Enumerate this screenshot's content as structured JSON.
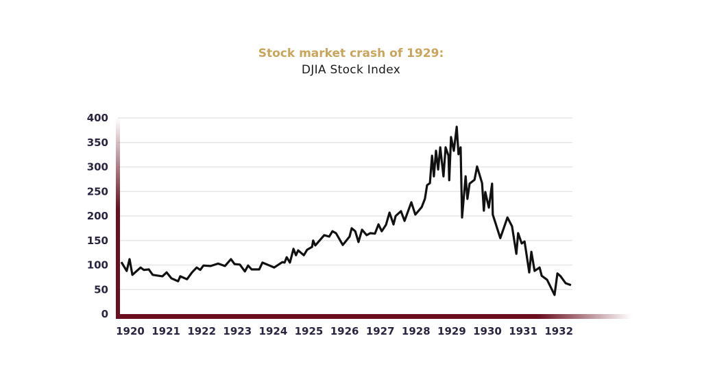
{
  "chart_data": {
    "type": "line",
    "title": "Stock market crash of 1929:",
    "subtitle": "DJIA Stock Index",
    "xlabel": "",
    "ylabel": "",
    "ylim": [
      0,
      400
    ],
    "xlim": [
      1919.65,
      1932.45
    ],
    "yticks": [
      0,
      50,
      100,
      150,
      200,
      250,
      300,
      350,
      400
    ],
    "xticks": [
      1920,
      1921,
      1922,
      1923,
      1924,
      1925,
      1926,
      1927,
      1928,
      1929,
      1930,
      1931,
      1932
    ],
    "grid": true,
    "colors": {
      "title": "#c9a45c",
      "line": "#111111",
      "axis": "#6b0f1f",
      "grid": "#e6e6e6",
      "ticks": "#2b2440"
    },
    "series": [
      {
        "name": "DJIA",
        "x": [
          1919.75,
          1919.9,
          1919.98,
          1920.06,
          1920.29,
          1920.38,
          1920.52,
          1920.63,
          1920.9,
          1921.02,
          1921.15,
          1921.34,
          1921.4,
          1921.59,
          1921.73,
          1921.86,
          1921.96,
          1922.05,
          1922.25,
          1922.46,
          1922.65,
          1922.82,
          1922.92,
          1923.07,
          1923.21,
          1923.3,
          1923.4,
          1923.61,
          1923.7,
          1923.9,
          1924.03,
          1924.26,
          1924.32,
          1924.38,
          1924.47,
          1924.57,
          1924.64,
          1924.7,
          1924.86,
          1924.95,
          1925.09,
          1925.12,
          1925.18,
          1925.43,
          1925.57,
          1925.66,
          1925.76,
          1925.95,
          1926.14,
          1926.2,
          1926.3,
          1926.39,
          1926.49,
          1926.62,
          1926.72,
          1926.85,
          1926.95,
          1927.04,
          1927.16,
          1927.26,
          1927.37,
          1927.43,
          1927.58,
          1927.68,
          1927.87,
          1927.98,
          1928.16,
          1928.25,
          1928.31,
          1928.39,
          1928.45,
          1928.5,
          1928.56,
          1928.62,
          1928.68,
          1928.77,
          1928.83,
          1928.91,
          1928.93,
          1928.98,
          1929.06,
          1929.14,
          1929.19,
          1929.25,
          1929.29,
          1929.39,
          1929.44,
          1929.5,
          1929.64,
          1929.71,
          1929.85,
          1929.9,
          1929.94,
          1930.04,
          1930.13,
          1930.15,
          1930.36,
          1930.56,
          1930.69,
          1930.81,
          1930.86,
          1930.96,
          1931.04,
          1931.17,
          1931.23,
          1931.32,
          1931.46,
          1931.52,
          1931.67,
          1931.88,
          1931.96,
          1932.05,
          1932.19,
          1932.34
        ],
        "values": [
          106,
          88,
          112,
          80,
          95,
          90,
          91,
          80,
          77,
          85,
          73,
          67,
          77,
          71,
          85,
          95,
          90,
          99,
          98,
          103,
          98,
          112,
          102,
          101,
          87,
          99,
          91,
          91,
          105,
          99,
          95,
          106,
          105,
          116,
          105,
          133,
          120,
          130,
          120,
          131,
          137,
          150,
          140,
          161,
          158,
          169,
          165,
          141,
          158,
          175,
          169,
          147,
          172,
          161,
          165,
          164,
          183,
          169,
          182,
          207,
          183,
          200,
          210,
          190,
          228,
          203,
          218,
          235,
          263,
          267,
          323,
          281,
          333,
          295,
          340,
          281,
          340,
          323,
          273,
          361,
          333,
          382,
          326,
          340,
          197,
          281,
          235,
          266,
          274,
          301,
          267,
          211,
          249,
          217,
          266,
          203,
          155,
          197,
          179,
          123,
          165,
          144,
          148,
          85,
          127,
          88,
          95,
          78,
          70,
          39,
          83,
          77,
          63,
          59
        ]
      }
    ]
  }
}
